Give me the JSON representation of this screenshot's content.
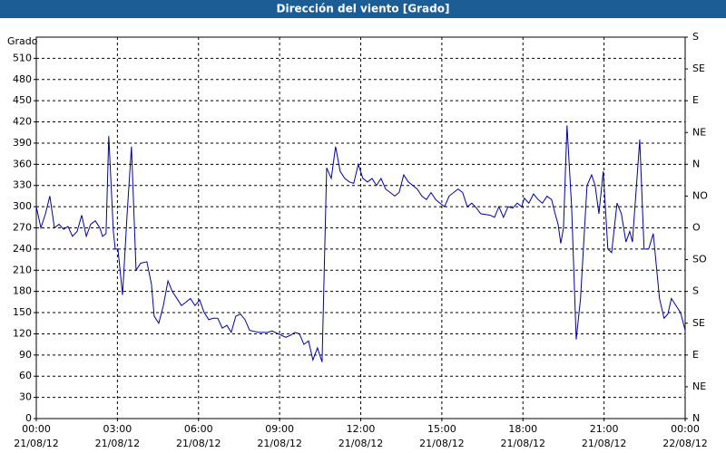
{
  "chart_data": {
    "type": "line",
    "title": "Dirección del viento [Grado]",
    "y_label": "Grado",
    "color": "#0000a0",
    "grid": true,
    "x": [
      0.0,
      0.17,
      0.34,
      0.5,
      0.67,
      0.84,
      1.01,
      1.17,
      1.34,
      1.51,
      1.68,
      1.85,
      2.01,
      2.18,
      2.35,
      2.45,
      2.58,
      2.68,
      2.85,
      2.92,
      3.02,
      3.19,
      3.36,
      3.52,
      3.69,
      3.86,
      4.09,
      4.26,
      4.36,
      4.53,
      4.7,
      4.87,
      5.03,
      5.2,
      5.37,
      5.54,
      5.7,
      5.87,
      6.04,
      6.21,
      6.38,
      6.54,
      6.71,
      6.88,
      7.05,
      7.21,
      7.38,
      7.55,
      7.72,
      7.89,
      8.22,
      8.56,
      8.72,
      9.06,
      9.23,
      9.4,
      9.56,
      9.73,
      9.9,
      10.07,
      10.23,
      10.4,
      10.57,
      10.74,
      10.91,
      11.07,
      11.24,
      11.41,
      11.58,
      11.74,
      11.91,
      12.08,
      12.25,
      12.42,
      12.58,
      12.75,
      12.92,
      13.26,
      13.42,
      13.59,
      13.76,
      13.93,
      14.09,
      14.26,
      14.43,
      14.6,
      14.77,
      14.93,
      15.1,
      15.27,
      15.6,
      15.77,
      15.94,
      16.11,
      16.28,
      16.44,
      16.78,
      16.95,
      17.11,
      17.28,
      17.45,
      17.62,
      17.79,
      17.95,
      18.05,
      18.22,
      18.39,
      18.56,
      18.72,
      18.89,
      19.06,
      19.19,
      19.3,
      19.4,
      19.5,
      19.63,
      19.8,
      19.97,
      20.13,
      20.37,
      20.54,
      20.67,
      20.81,
      20.97,
      21.14,
      21.28,
      21.48,
      21.64,
      21.81,
      21.95,
      22.05,
      22.32,
      22.48,
      22.65,
      22.82,
      23.05,
      23.22,
      23.36,
      23.49,
      23.66,
      23.83,
      24.0
    ],
    "values": [
      300,
      270,
      290,
      315,
      270,
      275,
      268,
      272,
      258,
      265,
      288,
      258,
      275,
      280,
      270,
      258,
      262,
      400,
      265,
      240,
      240,
      175,
      290,
      385,
      210,
      220,
      222,
      190,
      145,
      135,
      160,
      195,
      180,
      170,
      160,
      165,
      170,
      160,
      168,
      150,
      140,
      142,
      142,
      128,
      132,
      122,
      145,
      148,
      140,
      125,
      122,
      122,
      124,
      118,
      115,
      118,
      122,
      120,
      105,
      110,
      83,
      100,
      80,
      355,
      340,
      385,
      350,
      340,
      335,
      333,
      360,
      340,
      335,
      340,
      330,
      340,
      325,
      315,
      320,
      345,
      335,
      330,
      325,
      315,
      310,
      320,
      310,
      305,
      300,
      315,
      325,
      320,
      300,
      305,
      298,
      290,
      288,
      285,
      300,
      285,
      300,
      298,
      305,
      300,
      312,
      305,
      318,
      310,
      305,
      315,
      310,
      290,
      275,
      248,
      270,
      415,
      300,
      112,
      170,
      330,
      345,
      330,
      290,
      350,
      240,
      235,
      305,
      290,
      250,
      265,
      250,
      395,
      240,
      240,
      262,
      170,
      142,
      148,
      170,
      160,
      150,
      125
    ],
    "xlim": [
      0,
      24
    ],
    "xticks": [
      {
        "value": 0,
        "label": "00:00"
      },
      {
        "value": 3,
        "label": "03:00"
      },
      {
        "value": 6,
        "label": "06:00"
      },
      {
        "value": 9,
        "label": "09:00"
      },
      {
        "value": 12,
        "label": "12:00"
      },
      {
        "value": 15,
        "label": "15:00"
      },
      {
        "value": 18,
        "label": "18:00"
      },
      {
        "value": 21,
        "label": "21:00"
      },
      {
        "value": 24,
        "label": "00:00"
      }
    ],
    "xtick_dates": [
      "21/08/12",
      "21/08/12",
      "21/08/12",
      "21/08/12",
      "21/08/12",
      "21/08/12",
      "21/08/12",
      "21/08/12",
      "22/08/12"
    ],
    "ylim": [
      0,
      540
    ],
    "yticks": [
      0,
      30,
      60,
      90,
      120,
      150,
      180,
      210,
      240,
      270,
      300,
      330,
      360,
      390,
      420,
      450,
      480,
      510
    ],
    "y2lim": [
      0,
      540
    ],
    "y2ticks": [
      {
        "value": 0,
        "label": "N"
      },
      {
        "value": 45,
        "label": "NE"
      },
      {
        "value": 90,
        "label": "E"
      },
      {
        "value": 135,
        "label": "SE"
      },
      {
        "value": 180,
        "label": "S"
      },
      {
        "value": 225,
        "label": "SO"
      },
      {
        "value": 270,
        "label": "O"
      },
      {
        "value": 315,
        "label": "NO"
      },
      {
        "value": 360,
        "label": "N"
      },
      {
        "value": 405,
        "label": "NE"
      },
      {
        "value": 450,
        "label": "E"
      },
      {
        "value": 495,
        "label": "SE"
      },
      {
        "value": 540,
        "label": "S"
      }
    ]
  }
}
